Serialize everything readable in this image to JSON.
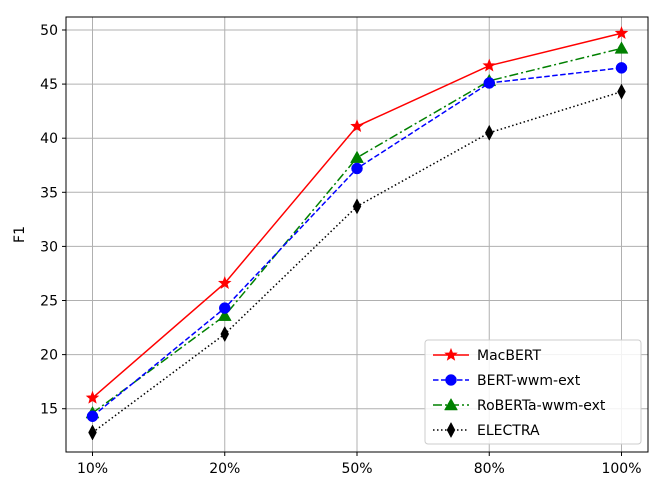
{
  "chart_data": {
    "type": "line",
    "categories": [
      "10%",
      "20%",
      "50%",
      "80%",
      "100%"
    ],
    "ylabel": "F1",
    "xlabel": "",
    "ylim": [
      11,
      51.2
    ],
    "yticks": [
      15,
      20,
      25,
      30,
      35,
      40,
      45,
      50
    ],
    "grid": true,
    "legend_position": "lower-right",
    "series": [
      {
        "name": "MacBERT",
        "values": [
          16.0,
          26.6,
          41.1,
          46.7,
          49.7
        ],
        "color": "#ff0000",
        "linestyle": "solid",
        "marker": "star"
      },
      {
        "name": "BERT-wwm-ext",
        "values": [
          14.3,
          24.3,
          37.2,
          45.1,
          46.5
        ],
        "color": "#0000ff",
        "linestyle": "dashed",
        "marker": "circle"
      },
      {
        "name": "RoBERTa-wwm-ext",
        "values": [
          14.6,
          23.6,
          38.2,
          45.3,
          48.3
        ],
        "color": "#008000",
        "linestyle": "dashdot",
        "marker": "triangle"
      },
      {
        "name": "ELECTRA",
        "values": [
          12.8,
          21.9,
          33.7,
          40.5,
          44.3
        ],
        "color": "#000000",
        "linestyle": "dotted",
        "marker": "thin-diamond"
      }
    ]
  }
}
